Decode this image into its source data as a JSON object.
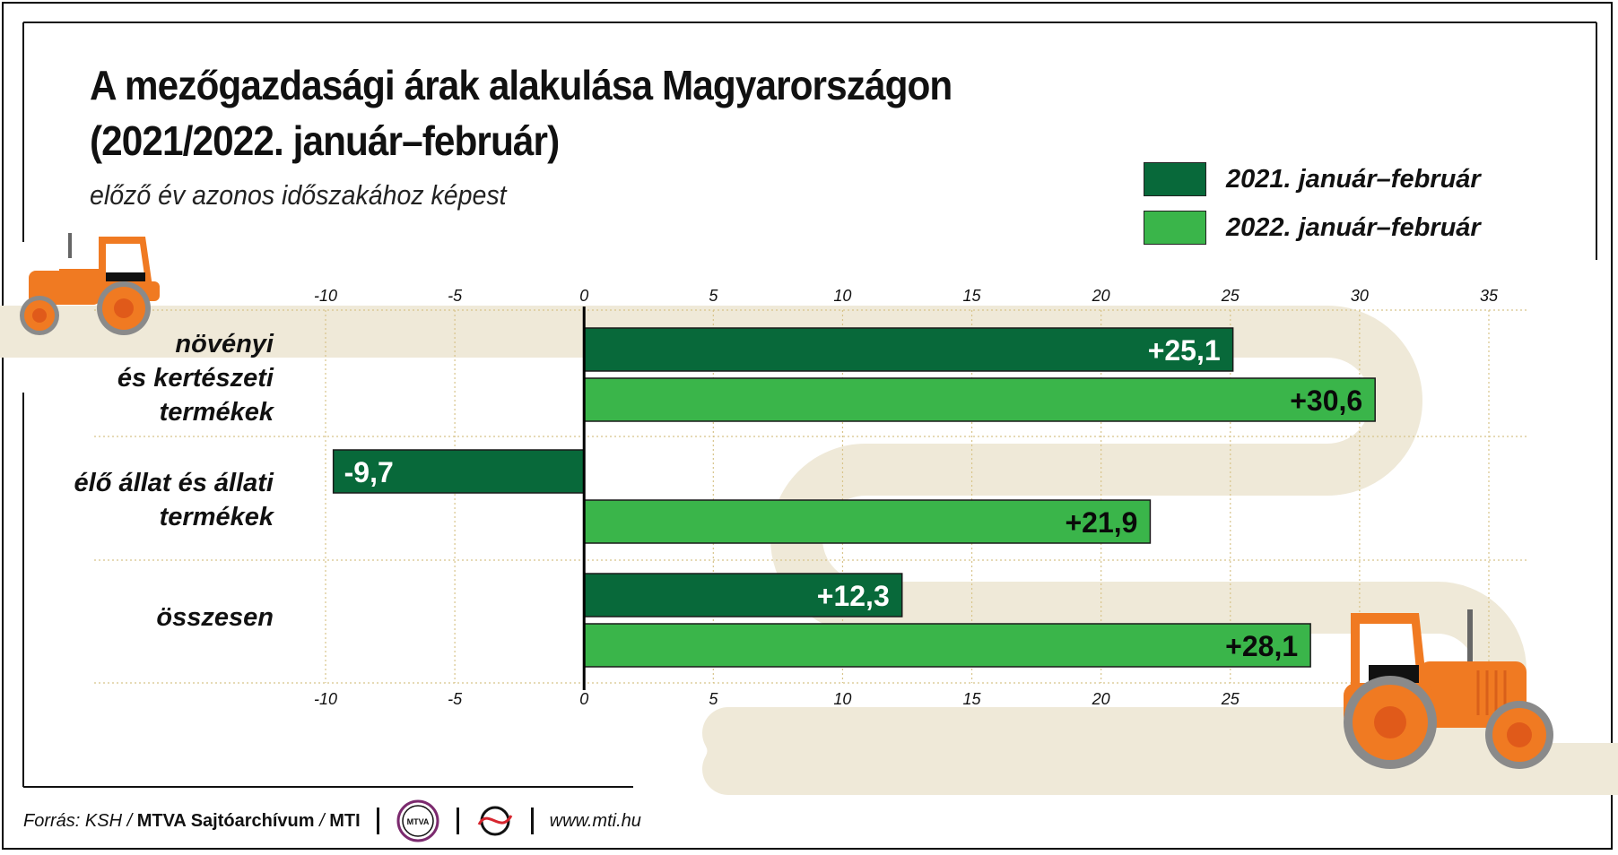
{
  "header": {
    "title_line1": "A mezőgazdasági árak alakulása Magyarországon",
    "title_line2": "(2021/2022. január–február)",
    "subtitle": "előző év azonos időszakához képest"
  },
  "footer": {
    "source_prefix": "Forrás: KSH / ",
    "source_bold1": "MTVA Sajtóarchívum",
    "source_mid": " / ",
    "source_bold2": "MTI",
    "logo1_text": "MTVA",
    "website": "www.mti.hu"
  },
  "colors": {
    "series_2021": "#08693a",
    "series_2022": "#3ab54a",
    "road": "#efe9d8",
    "tractor": "#f07a22",
    "grid": "#d8c48a"
  },
  "chart_data": {
    "type": "bar",
    "orientation": "horizontal",
    "categories": [
      [
        "növényi",
        "és kertészeti",
        "termékek"
      ],
      [
        "élő állat és állati",
        "termékek"
      ],
      [
        "összesen"
      ]
    ],
    "series": [
      {
        "name": "2021. január–február",
        "values": [
          25.1,
          -9.7,
          12.3
        ],
        "labels": [
          "+25,1",
          "-9,7",
          "+12,3"
        ]
      },
      {
        "name": "2022. január–február",
        "values": [
          30.6,
          21.9,
          28.1
        ],
        "labels": [
          "+30,6",
          "+21,9",
          "+28,1"
        ]
      }
    ],
    "xlim": [
      -10,
      35
    ],
    "xticks_top": [
      "-10",
      "-5",
      "0",
      "5",
      "10",
      "15",
      "20",
      "25",
      "30",
      "35"
    ],
    "xticks_bottom": [
      "-10",
      "-5",
      "0",
      "5",
      "10",
      "15",
      "20",
      "25"
    ],
    "grid": true,
    "legend_position": "top-right"
  }
}
